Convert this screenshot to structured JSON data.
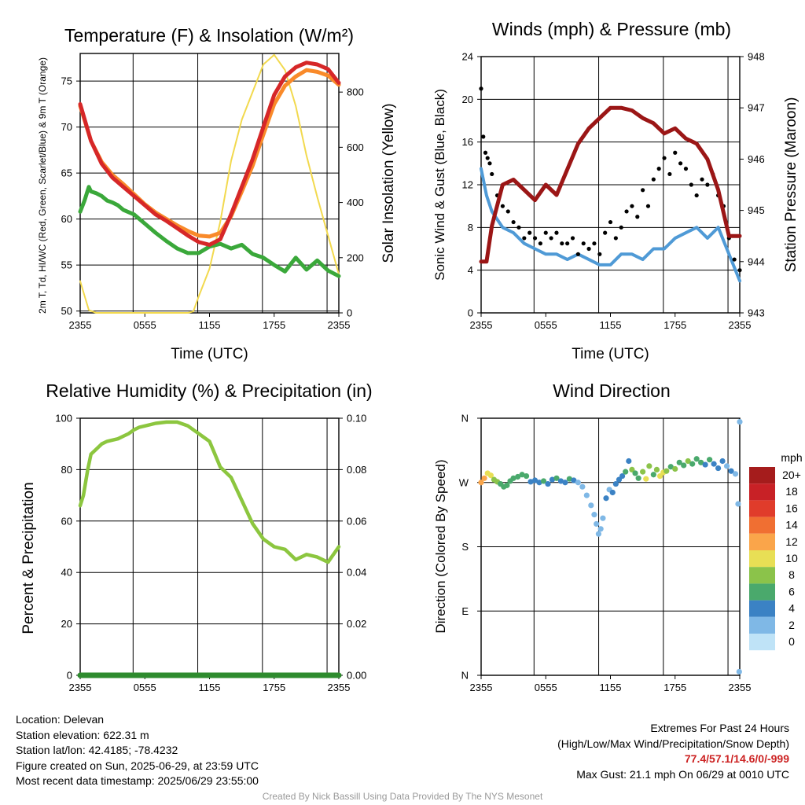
{
  "chart_data": [
    {
      "type": "line",
      "title": "Temperature (F) & Insolation (W/m²)",
      "xlabel": "Time (UTC)",
      "ylabel": "2m T, Td, HI/WC (Red, Green, Scarlet/Blue) & 9m T (Orange)",
      "ylabel_right": "Solar Insolation (Yellow)",
      "x_ticks": [
        "2355",
        "0555",
        "1155",
        "1755",
        "2355"
      ],
      "ylim": [
        49.8,
        78
      ],
      "ylim_right": [
        0,
        940
      ],
      "y_ticks": [
        50,
        55,
        60,
        65,
        70,
        75
      ],
      "y_ticks_right": [
        0,
        200,
        400,
        600,
        800
      ],
      "series": [
        {
          "color": "#d62728",
          "x": [
            0,
            1,
            2,
            3,
            4,
            5,
            6,
            7,
            8,
            9,
            10,
            11,
            12,
            13,
            14,
            15,
            16,
            17,
            18,
            19,
            20,
            21,
            22,
            23,
            24
          ],
          "values": [
            72.5,
            68.5,
            66,
            64.5,
            63.5,
            62.5,
            61.5,
            60.5,
            59.8,
            59,
            58.2,
            57.5,
            57.2,
            57.8,
            60.5,
            63.5,
            66.5,
            70,
            73.5,
            75.5,
            76.5,
            77,
            76.8,
            76.3,
            74.8
          ]
        },
        {
          "color": "#f98a2a",
          "x": [
            0,
            1,
            2,
            3,
            4,
            5,
            6,
            7,
            8,
            9,
            10,
            11,
            12,
            13,
            14,
            15,
            16,
            17,
            18,
            19,
            20,
            21,
            22,
            23,
            24
          ],
          "values": [
            72.3,
            68.5,
            66.2,
            64.8,
            63.8,
            62.7,
            61.6,
            60.7,
            60,
            59.3,
            58.7,
            58.2,
            58.1,
            58.5,
            60.3,
            63,
            65.8,
            69.2,
            72.5,
            74.5,
            75.5,
            76.2,
            76,
            75.6,
            74.6
          ]
        },
        {
          "color": "#3aa83a",
          "x": [
            0,
            0.4,
            0.8,
            1,
            1.5,
            2,
            2.5,
            3,
            3.5,
            4,
            5,
            6,
            7,
            8,
            9,
            10,
            11,
            12,
            13,
            14,
            15,
            16,
            17,
            18,
            19,
            20,
            21,
            22,
            23,
            24
          ],
          "values": [
            60.8,
            62,
            63.5,
            63,
            62.8,
            62.5,
            62,
            61.8,
            61.5,
            61,
            60.5,
            59.5,
            58.5,
            57.6,
            56.8,
            56.3,
            56.3,
            57,
            57.3,
            56.8,
            57.2,
            56.2,
            55.8,
            55,
            54.3,
            55.8,
            54.5,
            55.5,
            54.4,
            53.8
          ]
        }
      ],
      "insolation": {
        "color": "#f2d94e",
        "x": [
          0,
          0.8,
          1.5,
          2,
          3,
          4,
          5,
          6,
          7,
          8,
          9,
          10,
          10.5,
          11,
          12,
          13,
          14,
          15,
          16,
          17,
          18,
          19,
          20,
          21,
          22,
          23,
          24
        ],
        "values": [
          115,
          10,
          0,
          0,
          0,
          0,
          0,
          0,
          0,
          0,
          0,
          0,
          5,
          60,
          160,
          330,
          550,
          700,
          800,
          900,
          935,
          880,
          750,
          570,
          420,
          280,
          140
        ]
      }
    },
    {
      "type": "line",
      "title": "Winds (mph) & Pressure (mb)",
      "xlabel": "Time (UTC)",
      "ylabel": "Sonic Wind & Gust (Blue, Black)",
      "ylabel_right": "Station Pressure (Maroon)",
      "x_ticks": [
        "2355",
        "0555",
        "1155",
        "1755",
        "2355"
      ],
      "ylim": [
        0,
        24
      ],
      "ylim_right": [
        943,
        948
      ],
      "y_ticks": [
        0,
        4,
        8,
        12,
        16,
        20,
        24
      ],
      "y_ticks_right": [
        943,
        944,
        945,
        946,
        947,
        948
      ],
      "series": [
        {
          "name": "wind",
          "color": "#4f9ad6",
          "x": [
            0,
            0.5,
            1,
            2,
            3,
            4,
            5,
            6,
            7,
            8,
            9,
            10,
            11,
            12,
            13,
            14,
            15,
            16,
            17,
            18,
            19,
            20,
            21,
            22,
            23,
            24
          ],
          "values": [
            13.5,
            11,
            9.5,
            8,
            7.5,
            6.5,
            6,
            5.5,
            5.5,
            5,
            5.5,
            5,
            4.5,
            4.5,
            5.5,
            5.5,
            5,
            6,
            6,
            7,
            7.5,
            8,
            7,
            8,
            5.5,
            3
          ]
        },
        {
          "name": "pressure",
          "color": "#9b1616",
          "x": [
            0,
            0.5,
            1,
            2,
            3,
            4,
            5,
            6,
            7,
            8,
            9,
            10,
            11,
            12,
            13,
            14,
            15,
            16,
            17,
            18,
            19,
            20,
            21,
            22,
            23,
            24
          ],
          "values": [
            944.0,
            944.0,
            944.7,
            945.5,
            945.6,
            945.4,
            945.2,
            945.5,
            945.3,
            945.8,
            946.3,
            946.6,
            946.8,
            947.0,
            947.0,
            946.95,
            946.8,
            946.7,
            946.5,
            946.6,
            946.4,
            946.3,
            946.0,
            945.4,
            944.5,
            944.5
          ]
        }
      ],
      "gusts": {
        "color": "#000000",
        "x": [
          0,
          0.2,
          0.4,
          0.6,
          0.8,
          1,
          1.5,
          2,
          2.5,
          3,
          3.5,
          4,
          4.5,
          5,
          5.5,
          6,
          6.5,
          7,
          7.5,
          8,
          8.5,
          9,
          9.5,
          10,
          10.5,
          11,
          11.5,
          12,
          12.5,
          13,
          13.5,
          14,
          14.5,
          15,
          15.5,
          16,
          16.5,
          17,
          17.5,
          18,
          18.5,
          19,
          19.5,
          20,
          20.5,
          21,
          21.5,
          22,
          22.5,
          23,
          23.5,
          24
        ],
        "values": [
          21,
          16.5,
          15,
          14.5,
          14,
          13,
          11,
          10,
          9.5,
          8.5,
          8,
          7,
          7.5,
          7,
          6.5,
          7.5,
          7,
          7.5,
          6.5,
          6.5,
          7,
          5.5,
          6.5,
          6,
          6.5,
          5.5,
          7.5,
          8.5,
          7,
          8,
          9.5,
          10,
          9,
          11.5,
          10,
          12.5,
          13.5,
          14.5,
          13,
          15,
          14,
          13.5,
          12,
          11,
          12.5,
          12,
          13,
          11,
          10,
          7,
          5,
          4
        ]
      }
    },
    {
      "type": "line",
      "title": "Relative Humidity (%) & Precipitation (in)",
      "ylabel": "Percent & Precipitation",
      "x_ticks": [
        "2355",
        "0555",
        "1155",
        "1755",
        "2355"
      ],
      "ylim": [
        0,
        100
      ],
      "ylim_right": [
        0,
        0.1
      ],
      "y_ticks": [
        0,
        20,
        40,
        60,
        80,
        100
      ],
      "y_ticks_right": [
        "0.00",
        "0.02",
        "0.04",
        "0.06",
        "0.08",
        "0.10"
      ],
      "series": [
        {
          "name": "rh",
          "color": "#8cc63f",
          "x": [
            0,
            0.3,
            0.7,
            1,
            1.5,
            2,
            2.5,
            3,
            3.5,
            4,
            4.5,
            5,
            5.5,
            6,
            7,
            8,
            9,
            10,
            11,
            11.5,
            12,
            12.5,
            13,
            14,
            15,
            16,
            17,
            18,
            19,
            20,
            21,
            22,
            23,
            24
          ],
          "values": [
            66,
            70,
            80,
            86,
            88,
            90,
            91,
            91.5,
            92,
            93,
            94,
            95.5,
            96.5,
            97,
            98,
            98.5,
            98.5,
            97,
            94,
            92.5,
            91,
            86,
            81,
            77,
            68,
            59,
            53,
            50,
            49,
            45,
            47,
            46,
            44,
            50
          ]
        },
        {
          "name": "precip",
          "color": "#2e8b2e",
          "x": [
            0,
            24
          ],
          "values": [
            0,
            0
          ]
        }
      ]
    },
    {
      "type": "scatter",
      "title": "Wind Direction",
      "ylabel": "Direction (Colored By Speed)",
      "x_ticks": [
        "2355",
        "0555",
        "1155",
        "1755",
        "2355"
      ],
      "y_ticks": [
        "N",
        "E",
        "S",
        "W",
        "N"
      ],
      "ylim": [
        0,
        360
      ],
      "legend": {
        "title": "mph",
        "labels": [
          "20+",
          "18",
          "16",
          "14",
          "12",
          "10",
          "8",
          "6",
          "4",
          "2",
          "0"
        ],
        "colors": [
          "#a51c1c",
          "#c82126",
          "#e03c2b",
          "#f06f32",
          "#faa54a",
          "#e8df55",
          "#8bc34a",
          "#4aa96c",
          "#3b82c4",
          "#7fb8e6",
          "#bfe3f7"
        ]
      },
      "points": [
        {
          "x": 0,
          "dir": 270,
          "spd": 13
        },
        {
          "x": 0.3,
          "dir": 276,
          "spd": 12
        },
        {
          "x": 0.6,
          "dir": 283,
          "spd": 11
        },
        {
          "x": 0.9,
          "dir": 280,
          "spd": 10
        },
        {
          "x": 1.2,
          "dir": 274,
          "spd": 9
        },
        {
          "x": 1.5,
          "dir": 271,
          "spd": 8
        },
        {
          "x": 1.8,
          "dir": 268,
          "spd": 7
        },
        {
          "x": 2.1,
          "dir": 264,
          "spd": 7
        },
        {
          "x": 2.4,
          "dir": 266,
          "spd": 6
        },
        {
          "x": 2.7,
          "dir": 272,
          "spd": 7
        },
        {
          "x": 3,
          "dir": 276,
          "spd": 6
        },
        {
          "x": 3.4,
          "dir": 278,
          "spd": 7
        },
        {
          "x": 3.8,
          "dir": 281,
          "spd": 6
        },
        {
          "x": 4.2,
          "dir": 279,
          "spd": 6
        },
        {
          "x": 4.6,
          "dir": 271,
          "spd": 5
        },
        {
          "x": 5,
          "dir": 273,
          "spd": 5
        },
        {
          "x": 5.4,
          "dir": 270,
          "spd": 4
        },
        {
          "x": 5.8,
          "dir": 272,
          "spd": 6
        },
        {
          "x": 6.2,
          "dir": 268,
          "spd": 4
        },
        {
          "x": 6.6,
          "dir": 274,
          "spd": 5
        },
        {
          "x": 7,
          "dir": 276,
          "spd": 6
        },
        {
          "x": 7.4,
          "dir": 272,
          "spd": 4
        },
        {
          "x": 7.8,
          "dir": 270,
          "spd": 5
        },
        {
          "x": 8.2,
          "dir": 275,
          "spd": 6
        },
        {
          "x": 8.6,
          "dir": 273,
          "spd": 4
        },
        {
          "x": 9,
          "dir": 270,
          "spd": 3
        },
        {
          "x": 9.4,
          "dir": 264,
          "spd": 3
        },
        {
          "x": 9.8,
          "dir": 252,
          "spd": 3
        },
        {
          "x": 10.2,
          "dir": 238,
          "spd": 2
        },
        {
          "x": 10.5,
          "dir": 225,
          "spd": 3
        },
        {
          "x": 10.7,
          "dir": 212,
          "spd": 2
        },
        {
          "x": 10.9,
          "dir": 198,
          "spd": 3
        },
        {
          "x": 11.1,
          "dir": 205,
          "spd": 2
        },
        {
          "x": 11.3,
          "dir": 220,
          "spd": 3
        },
        {
          "x": 11.6,
          "dir": 248,
          "spd": 4
        },
        {
          "x": 11.9,
          "dir": 260,
          "spd": 3
        },
        {
          "x": 12.2,
          "dir": 256,
          "spd": 4
        },
        {
          "x": 12.5,
          "dir": 268,
          "spd": 5
        },
        {
          "x": 12.8,
          "dir": 274,
          "spd": 4
        },
        {
          "x": 13.1,
          "dir": 279,
          "spd": 5
        },
        {
          "x": 13.4,
          "dir": 285,
          "spd": 6
        },
        {
          "x": 13.7,
          "dir": 300,
          "spd": 5
        },
        {
          "x": 14,
          "dir": 288,
          "spd": 8
        },
        {
          "x": 14.3,
          "dir": 283,
          "spd": 6
        },
        {
          "x": 14.6,
          "dir": 276,
          "spd": 7
        },
        {
          "x": 15,
          "dir": 285,
          "spd": 9
        },
        {
          "x": 15.3,
          "dir": 275,
          "spd": 10
        },
        {
          "x": 15.6,
          "dir": 293,
          "spd": 9
        },
        {
          "x": 16,
          "dir": 281,
          "spd": 7
        },
        {
          "x": 16.3,
          "dir": 288,
          "spd": 8
        },
        {
          "x": 16.6,
          "dir": 279,
          "spd": 10
        },
        {
          "x": 16.9,
          "dir": 284,
          "spd": 11
        },
        {
          "x": 17.2,
          "dir": 286,
          "spd": 8
        },
        {
          "x": 17.6,
          "dir": 292,
          "spd": 6
        },
        {
          "x": 18,
          "dir": 289,
          "spd": 8
        },
        {
          "x": 18.4,
          "dir": 298,
          "spd": 7
        },
        {
          "x": 18.8,
          "dir": 294,
          "spd": 6
        },
        {
          "x": 19.2,
          "dir": 300,
          "spd": 8
        },
        {
          "x": 19.6,
          "dir": 296,
          "spd": 7
        },
        {
          "x": 20,
          "dir": 303,
          "spd": 6
        },
        {
          "x": 20.4,
          "dir": 298,
          "spd": 7
        },
        {
          "x": 20.8,
          "dir": 295,
          "spd": 5
        },
        {
          "x": 21.2,
          "dir": 302,
          "spd": 6
        },
        {
          "x": 21.6,
          "dir": 296,
          "spd": 5
        },
        {
          "x": 22,
          "dir": 290,
          "spd": 4
        },
        {
          "x": 22.4,
          "dir": 300,
          "spd": 5
        },
        {
          "x": 22.8,
          "dir": 293,
          "spd": 3
        },
        {
          "x": 23.2,
          "dir": 286,
          "spd": 4
        },
        {
          "x": 23.6,
          "dir": 282,
          "spd": 3
        },
        {
          "x": 23.85,
          "dir": 240,
          "spd": 2
        },
        {
          "x": 23.95,
          "dir": 5,
          "spd": 2
        },
        {
          "x": 24,
          "dir": 355,
          "spd": 3
        }
      ]
    }
  ],
  "info": {
    "location": "Location: Delevan",
    "elevation": "Station elevation: 622.31 m",
    "latlon": "Station lat/lon: 42.4185; -78.4232",
    "created": "Figure created on Sun, 2025-06-29, at 23:59 UTC",
    "recent": "Most recent data timestamp: 2025/06/29 23:55:00"
  },
  "extremes": {
    "title": "Extremes For Past 24 Hours",
    "subtitle": "(High/Low/Max Wind/Precipitation/Snow Depth)",
    "values": "77.4/57.1/14.6/0/-999",
    "gust": "Max Gust: 21.1 mph On 06/29 at 0010 UTC"
  },
  "credit": "Created By Nick Bassill Using Data Provided By The NYS Mesonet"
}
